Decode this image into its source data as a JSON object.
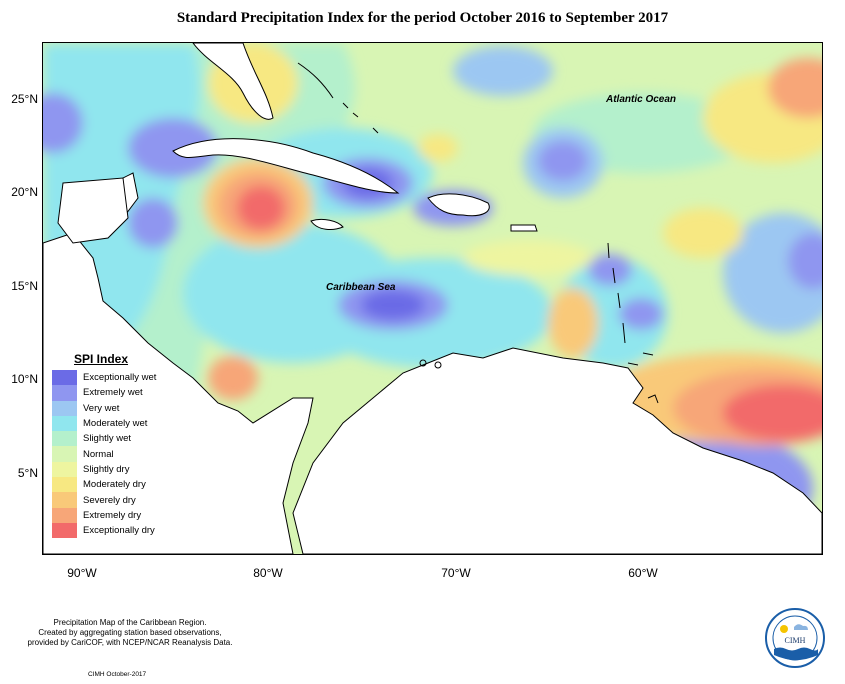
{
  "title": "Standard Precipitation Index for the period October 2016 to September 2017",
  "map": {
    "region": "Caribbean",
    "labels": {
      "ocean": "Atlantic Ocean",
      "sea": "Caribbean Sea"
    },
    "lat_labels": [
      "25°N",
      "20°N",
      "15°N",
      "10°N",
      "5°N"
    ],
    "lon_labels": [
      "90°W",
      "80°W",
      "70°W",
      "60°W"
    ]
  },
  "legend": {
    "title": "SPI Index",
    "items": [
      {
        "label": "Exceptionally wet",
        "color": "#6b6be6"
      },
      {
        "label": "Extremely wet",
        "color": "#8f96f0"
      },
      {
        "label": "Very wet",
        "color": "#9cc7f2"
      },
      {
        "label": "Moderately wet",
        "color": "#90e6ee"
      },
      {
        "label": "Slightly wet",
        "color": "#b4f0cc"
      },
      {
        "label": "Normal",
        "color": "#d8f5b4"
      },
      {
        "label": "Slightly dry",
        "color": "#eef5a0"
      },
      {
        "label": "Moderately dry",
        "color": "#f7e882"
      },
      {
        "label": "Severely dry",
        "color": "#f9c979"
      },
      {
        "label": "Extremely dry",
        "color": "#f7a678"
      },
      {
        "label": "Exceptionally dry",
        "color": "#f26a6a"
      }
    ]
  },
  "footer": {
    "note_line1": "Precipitation Map of the Caribbean Region.",
    "note_line2": "Created by aggregating station based observations,",
    "note_line3": "provided by CariCOF, with NCEP/NCAR Reanalysis Data.",
    "credit": "CIMH October-2017",
    "logo_text": "CIMH"
  }
}
